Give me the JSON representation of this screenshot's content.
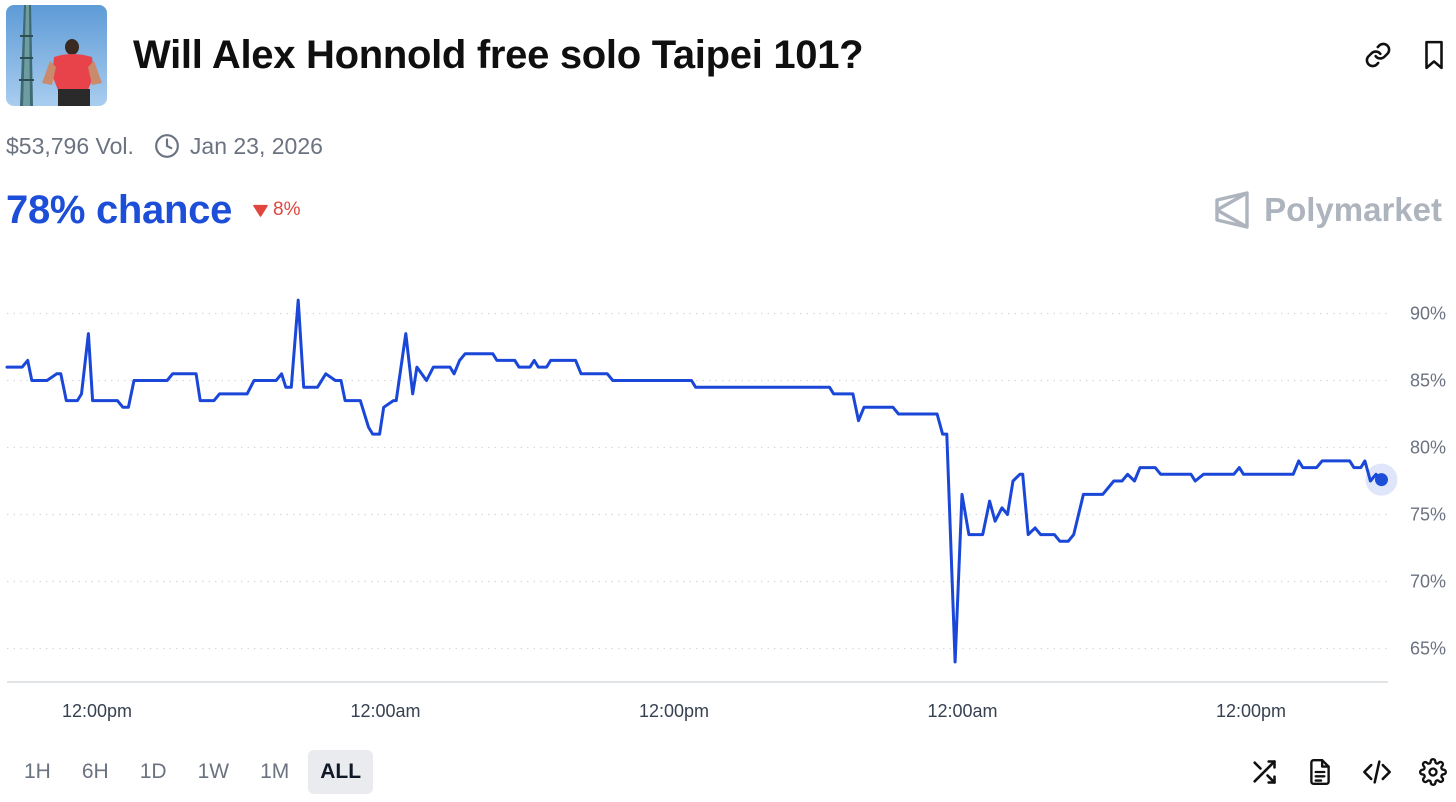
{
  "header": {
    "title": "Will Alex Honnold free solo Taipei 101?",
    "thumbnail_icon": "taipei-101-photo",
    "link_icon": "link-icon",
    "bookmark_icon": "bookmark-icon"
  },
  "meta": {
    "volume": "$53,796 Vol.",
    "date": "Jan 23, 2026"
  },
  "odds": {
    "chance": "78% chance",
    "change": "8%",
    "change_direction": "down"
  },
  "brand": {
    "name": "Polymarket"
  },
  "colors": {
    "accent": "#1d4ed8",
    "line": "#1a47d8",
    "negative": "#e0463d",
    "muted": "#6b7280",
    "brand_gray": "#aeb4bd"
  },
  "chart_data": {
    "type": "line",
    "x_tick_labels": [
      "12:00pm",
      "12:00am",
      "12:00pm",
      "12:00am",
      "12:00pm"
    ],
    "y_tick_labels": [
      "90%",
      "85%",
      "80%",
      "75%",
      "70%",
      "65%"
    ],
    "y_ticks": [
      90,
      85,
      80,
      75,
      70,
      65
    ],
    "ylim": [
      62.5,
      92.5
    ],
    "xlim": [
      0,
      100
    ],
    "grid": true,
    "series": [
      {
        "points": [
          [
            0.0,
            86.0
          ],
          [
            1.1,
            86.0
          ],
          [
            1.5,
            86.5
          ],
          [
            1.8,
            85.0
          ],
          [
            2.9,
            85.0
          ],
          [
            3.6,
            85.5
          ],
          [
            3.9,
            85.5
          ],
          [
            4.3,
            83.5
          ],
          [
            5.1,
            83.5
          ],
          [
            5.4,
            84.0
          ],
          [
            5.9,
            88.5
          ],
          [
            6.2,
            83.5
          ],
          [
            7.6,
            83.5
          ],
          [
            8.0,
            83.5
          ],
          [
            8.4,
            83.0
          ],
          [
            8.8,
            83.0
          ],
          [
            9.2,
            85.0
          ],
          [
            11.6,
            85.0
          ],
          [
            12.0,
            85.5
          ],
          [
            13.7,
            85.5
          ],
          [
            14.0,
            83.5
          ],
          [
            15.0,
            83.5
          ],
          [
            15.4,
            84.0
          ],
          [
            17.4,
            84.0
          ],
          [
            17.9,
            85.0
          ],
          [
            19.5,
            85.0
          ],
          [
            19.9,
            85.5
          ],
          [
            20.2,
            84.5
          ],
          [
            20.6,
            84.5
          ],
          [
            21.1,
            91.0
          ],
          [
            21.5,
            84.5
          ],
          [
            22.5,
            84.5
          ],
          [
            23.1,
            85.5
          ],
          [
            23.8,
            85.0
          ],
          [
            24.2,
            85.0
          ],
          [
            24.5,
            83.5
          ],
          [
            25.6,
            83.5
          ],
          [
            26.2,
            81.5
          ],
          [
            26.5,
            81.0
          ],
          [
            27.0,
            81.0
          ],
          [
            27.3,
            83.0
          ],
          [
            28.0,
            83.5
          ],
          [
            28.2,
            83.5
          ],
          [
            28.9,
            88.5
          ],
          [
            29.4,
            84.0
          ],
          [
            29.7,
            86.0
          ],
          [
            30.4,
            85.0
          ],
          [
            30.9,
            86.0
          ],
          [
            32.1,
            86.0
          ],
          [
            32.4,
            85.5
          ],
          [
            32.8,
            86.5
          ],
          [
            33.2,
            87.0
          ],
          [
            35.2,
            87.0
          ],
          [
            35.5,
            86.5
          ],
          [
            36.8,
            86.5
          ],
          [
            37.1,
            86.0
          ],
          [
            37.9,
            86.0
          ],
          [
            38.2,
            86.5
          ],
          [
            38.5,
            86.0
          ],
          [
            39.1,
            86.0
          ],
          [
            39.4,
            86.5
          ],
          [
            41.2,
            86.5
          ],
          [
            41.6,
            85.5
          ],
          [
            43.5,
            85.5
          ],
          [
            43.9,
            85.0
          ],
          [
            49.6,
            85.0
          ],
          [
            49.9,
            84.5
          ],
          [
            59.6,
            84.5
          ],
          [
            59.9,
            84.0
          ],
          [
            61.3,
            84.0
          ],
          [
            61.7,
            82.0
          ],
          [
            62.1,
            83.0
          ],
          [
            64.2,
            83.0
          ],
          [
            64.6,
            82.5
          ],
          [
            67.4,
            82.5
          ],
          [
            67.8,
            81.0
          ],
          [
            68.1,
            81.0
          ],
          [
            68.7,
            64.0
          ],
          [
            69.2,
            76.5
          ],
          [
            69.7,
            73.5
          ],
          [
            70.7,
            73.5
          ],
          [
            71.2,
            76.0
          ],
          [
            71.6,
            74.5
          ],
          [
            72.1,
            75.5
          ],
          [
            72.5,
            75.0
          ],
          [
            72.9,
            77.5
          ],
          [
            73.4,
            78.0
          ],
          [
            73.6,
            78.0
          ],
          [
            74.0,
            73.5
          ],
          [
            74.5,
            74.0
          ],
          [
            74.9,
            73.5
          ],
          [
            75.9,
            73.5
          ],
          [
            76.3,
            73.0
          ],
          [
            76.9,
            73.0
          ],
          [
            77.3,
            73.5
          ],
          [
            78.0,
            76.5
          ],
          [
            79.4,
            76.5
          ],
          [
            80.2,
            77.5
          ],
          [
            80.8,
            77.5
          ],
          [
            81.2,
            78.0
          ],
          [
            81.7,
            77.5
          ],
          [
            82.1,
            78.5
          ],
          [
            83.2,
            78.5
          ],
          [
            83.6,
            78.0
          ],
          [
            85.8,
            78.0
          ],
          [
            86.1,
            77.5
          ],
          [
            86.7,
            78.0
          ],
          [
            88.9,
            78.0
          ],
          [
            89.3,
            78.5
          ],
          [
            89.6,
            78.0
          ],
          [
            93.2,
            78.0
          ],
          [
            93.6,
            79.0
          ],
          [
            93.9,
            78.5
          ],
          [
            94.9,
            78.5
          ],
          [
            95.3,
            79.0
          ],
          [
            97.3,
            79.0
          ],
          [
            97.6,
            78.5
          ],
          [
            98.1,
            78.5
          ],
          [
            98.4,
            79.0
          ],
          [
            98.8,
            77.5
          ],
          [
            99.2,
            78.0
          ],
          [
            99.6,
            77.6
          ]
        ]
      }
    ],
    "last_value": 77.6
  },
  "controls": {
    "ranges": [
      "1H",
      "6H",
      "1D",
      "1W",
      "1M",
      "ALL"
    ],
    "active_range": "ALL",
    "icons": [
      "shuffle-icon",
      "document-icon",
      "code-icon",
      "settings-icon"
    ]
  }
}
